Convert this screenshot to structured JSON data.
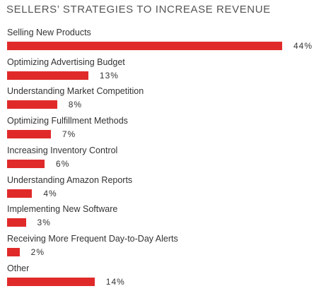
{
  "chart_data": {
    "type": "bar",
    "orientation": "horizontal",
    "title": "SELLERS’ STRATEGIES TO INCREASE REVENUE",
    "categories": [
      "Selling New Products",
      "Optimizing Advertising Budget",
      "Understanding Market Competition",
      "Optimizing Fulfillment Methods",
      "Increasing Inventory Control",
      "Understanding Amazon Reports",
      "Implementing New Software",
      "Receiving More Frequent Day-to-Day Alerts",
      "Other"
    ],
    "values": [
      44,
      13,
      8,
      7,
      6,
      4,
      3,
      2,
      14
    ],
    "value_labels": [
      "44%",
      "13%",
      "8%",
      "7%",
      "6%",
      "4%",
      "3%",
      "2%",
      "14%"
    ],
    "unit": "%",
    "xlim": [
      0,
      44
    ],
    "grid": false,
    "legend": "none",
    "bar_color": "#e02a2a"
  }
}
